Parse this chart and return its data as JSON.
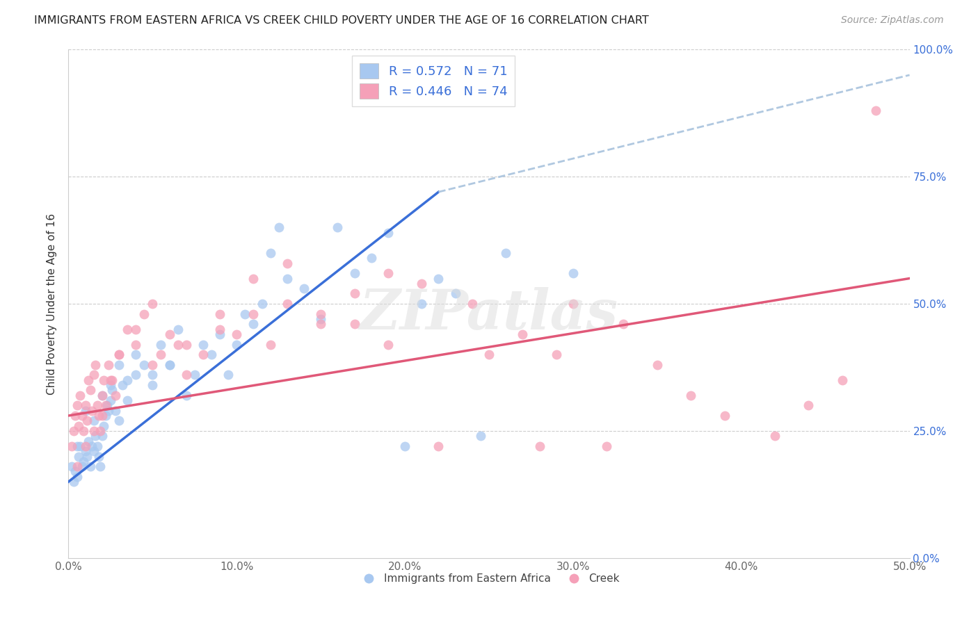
{
  "title": "IMMIGRANTS FROM EASTERN AFRICA VS CREEK CHILD POVERTY UNDER THE AGE OF 16 CORRELATION CHART",
  "source": "Source: ZipAtlas.com",
  "ylabel": "Child Poverty Under the Age of 16",
  "xlim": [
    0,
    50
  ],
  "ylim": [
    0,
    100
  ],
  "blue_R": 0.572,
  "blue_N": 71,
  "pink_R": 0.446,
  "pink_N": 74,
  "blue_color": "#a8c8f0",
  "pink_color": "#f5a0b8",
  "blue_line_color": "#3a6fd8",
  "pink_line_color": "#e05878",
  "dashed_line_color": "#b0c8e0",
  "watermark": "ZIPatlas",
  "legend_label_blue": "Immigrants from Eastern Africa",
  "legend_label_pink": "Creek",
  "blue_line_x0": 0,
  "blue_line_y0": 15,
  "blue_line_x1": 22,
  "blue_line_y1": 72,
  "pink_line_x0": 0,
  "pink_line_y0": 28,
  "pink_line_x1": 50,
  "pink_line_y1": 55,
  "dashed_line_x0": 22,
  "dashed_line_y0": 72,
  "dashed_line_x1": 50,
  "dashed_line_y1": 95,
  "blue_scatter_x": [
    0.2,
    0.3,
    0.4,
    0.5,
    0.6,
    0.7,
    0.8,
    0.9,
    1.0,
    1.1,
    1.2,
    1.3,
    1.4,
    1.5,
    1.6,
    1.7,
    1.8,
    1.9,
    2.0,
    2.1,
    2.2,
    2.3,
    2.4,
    2.5,
    2.6,
    2.8,
    3.0,
    3.2,
    3.5,
    4.0,
    4.5,
    5.0,
    5.5,
    6.0,
    6.5,
    7.0,
    7.5,
    8.0,
    8.5,
    9.0,
    9.5,
    10.0,
    10.5,
    11.0,
    11.5,
    12.0,
    12.5,
    13.0,
    14.0,
    15.0,
    16.0,
    17.0,
    18.0,
    19.0,
    20.0,
    21.0,
    22.0,
    23.0,
    24.5,
    26.0,
    30.0,
    0.5,
    1.0,
    1.5,
    2.0,
    2.5,
    3.0,
    3.5,
    4.0,
    5.0,
    6.0
  ],
  "blue_scatter_y": [
    18,
    15,
    17,
    16,
    20,
    22,
    18,
    19,
    21,
    20,
    23,
    18,
    22,
    21,
    24,
    22,
    20,
    18,
    24,
    26,
    28,
    30,
    29,
    31,
    33,
    29,
    27,
    34,
    31,
    36,
    38,
    34,
    42,
    38,
    45,
    32,
    36,
    42,
    40,
    44,
    36,
    42,
    48,
    46,
    50,
    60,
    65,
    55,
    53,
    47,
    65,
    56,
    59,
    64,
    22,
    50,
    55,
    52,
    24,
    60,
    56,
    22,
    29,
    27,
    32,
    34,
    38,
    35,
    40,
    36,
    38
  ],
  "pink_scatter_x": [
    0.2,
    0.3,
    0.4,
    0.5,
    0.6,
    0.7,
    0.8,
    0.9,
    1.0,
    1.1,
    1.2,
    1.3,
    1.4,
    1.5,
    1.6,
    1.7,
    1.8,
    1.9,
    2.0,
    2.1,
    2.2,
    2.4,
    2.6,
    2.8,
    3.0,
    3.5,
    4.0,
    4.5,
    5.0,
    5.5,
    6.0,
    6.5,
    7.0,
    8.0,
    9.0,
    10.0,
    11.0,
    12.0,
    13.0,
    15.0,
    17.0,
    19.0,
    22.0,
    25.0,
    28.0,
    30.0,
    33.0,
    0.5,
    1.0,
    1.5,
    2.0,
    2.5,
    3.0,
    4.0,
    5.0,
    7.0,
    9.0,
    11.0,
    13.0,
    15.0,
    17.0,
    19.0,
    21.0,
    24.0,
    27.0,
    29.0,
    32.0,
    35.0,
    37.0,
    39.0,
    42.0,
    44.0,
    46.0,
    48.0
  ],
  "pink_scatter_y": [
    22,
    25,
    28,
    30,
    26,
    32,
    28,
    25,
    30,
    27,
    35,
    33,
    29,
    36,
    38,
    30,
    28,
    25,
    32,
    35,
    30,
    38,
    35,
    32,
    40,
    45,
    42,
    48,
    38,
    40,
    44,
    42,
    36,
    40,
    45,
    44,
    48,
    42,
    50,
    48,
    46,
    42,
    22,
    40,
    22,
    50,
    46,
    18,
    22,
    25,
    28,
    35,
    40,
    45,
    50,
    42,
    48,
    55,
    58,
    46,
    52,
    56,
    54,
    50,
    44,
    40,
    22,
    38,
    32,
    28,
    24,
    30,
    35,
    88
  ]
}
